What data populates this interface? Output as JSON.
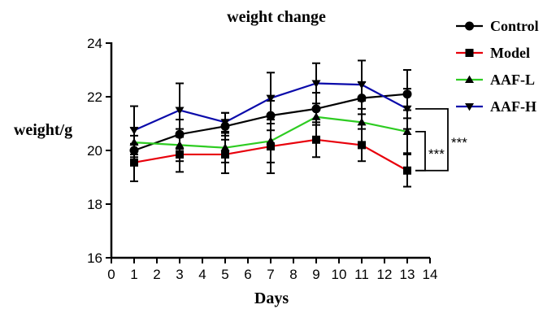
{
  "chart_data": {
    "type": "line",
    "title": "weight change",
    "xlabel": "Days",
    "ylabel": "weight/g",
    "xlim": [
      0,
      14
    ],
    "ylim": [
      16,
      24
    ],
    "x_ticks": [
      "0",
      "1",
      "2",
      "3",
      "4",
      "5",
      "6",
      "7",
      "8",
      "9",
      "10",
      "11",
      "12",
      "13",
      "14"
    ],
    "y_ticks": [
      "16",
      "18",
      "20",
      "22",
      "24"
    ],
    "x": [
      1,
      3,
      5,
      7,
      9,
      11,
      13
    ],
    "grid": false,
    "legend_position": "top-right",
    "series": [
      {
        "name": "Control",
        "color": "#000000",
        "marker": "circle",
        "values": [
          20.0,
          20.6,
          20.9,
          21.3,
          21.55,
          21.95,
          22.1
        ],
        "errors": [
          0.55,
          0.55,
          0.5,
          0.55,
          0.6,
          0.6,
          0.9
        ]
      },
      {
        "name": "Model",
        "color": "#e8000b",
        "marker": "square",
        "values": [
          19.55,
          19.85,
          19.85,
          20.15,
          20.4,
          20.2,
          19.25
        ],
        "errors": [
          0.7,
          0.65,
          0.7,
          1.0,
          0.65,
          0.6,
          0.6
        ]
      },
      {
        "name": "AAF-L",
        "color": "#2ecc22",
        "marker": "triangle-up",
        "values": [
          20.3,
          20.2,
          20.1,
          20.35,
          21.25,
          21.05,
          20.7
        ],
        "errors": [
          0.55,
          0.6,
          0.55,
          0.8,
          0.9,
          0.8,
          0.8
        ]
      },
      {
        "name": "AAF-H",
        "color": "#0a0aaa",
        "marker": "triangle-down",
        "values": [
          20.75,
          21.5,
          21.05,
          21.95,
          22.5,
          22.45,
          21.55
        ],
        "errors": [
          0.9,
          1.0,
          0.35,
          0.95,
          0.75,
          0.9,
          0.75
        ]
      }
    ],
    "annotations": [
      {
        "text": "***",
        "between": [
          "Model",
          "AAF-L"
        ],
        "at_x": 13
      },
      {
        "text": "***",
        "between": [
          "Model",
          "AAF-H"
        ],
        "at_x": 13
      }
    ]
  }
}
